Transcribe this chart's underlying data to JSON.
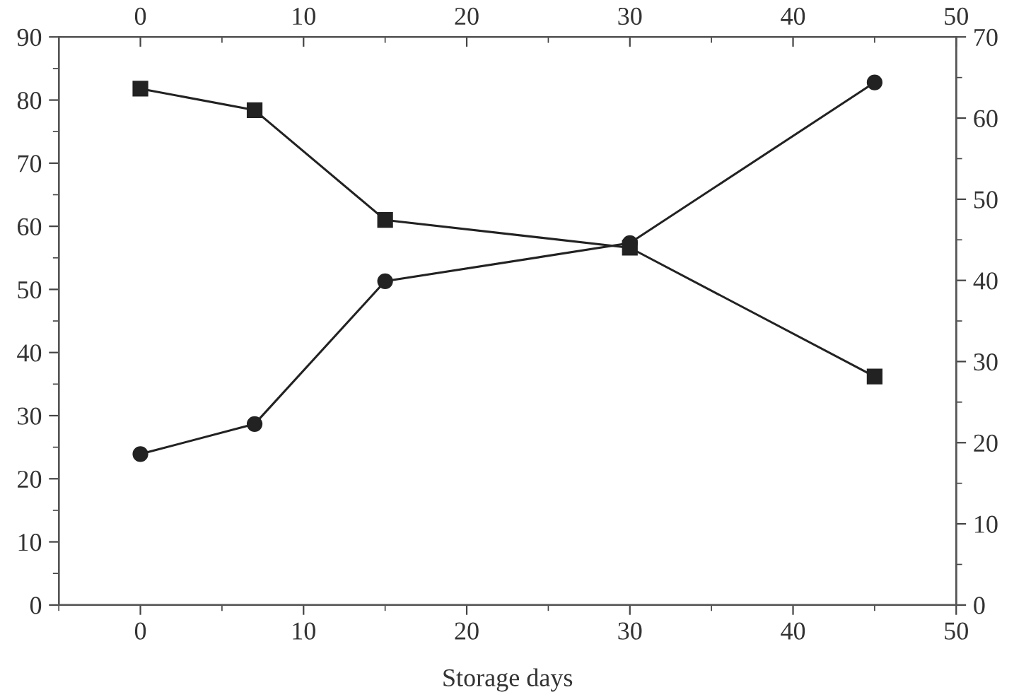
{
  "chart_data": {
    "type": "line",
    "xlabel": "Storage days",
    "x": [
      0,
      7,
      15,
      30,
      45
    ],
    "series": [
      {
        "color": "#222222",
        "marker": "square",
        "values": [
          81.8,
          78.4,
          61.0,
          56.6,
          36.2
        ]
      },
      {
        "color": "#222222",
        "marker": "circle",
        "axis": "y2",
        "values": [
          18.6,
          22.3,
          39.9,
          44.6,
          64.4
        ]
      }
    ],
    "xlim": [
      -5,
      50
    ],
    "xticks": [
      0,
      10,
      20,
      30,
      40,
      50
    ],
    "x2lim": [
      -5,
      50
    ],
    "x2ticks": [
      0,
      10,
      20,
      30,
      40,
      50
    ],
    "ylim": [
      0,
      90
    ],
    "yticks": [
      0,
      10,
      20,
      30,
      40,
      50,
      60,
      70,
      80,
      90
    ],
    "y2lim": [
      0,
      70
    ],
    "y2ticks": [
      0,
      10,
      20,
      30,
      40,
      50,
      60,
      70
    ],
    "grid": false,
    "legend": false,
    "line_style": "solid"
  }
}
